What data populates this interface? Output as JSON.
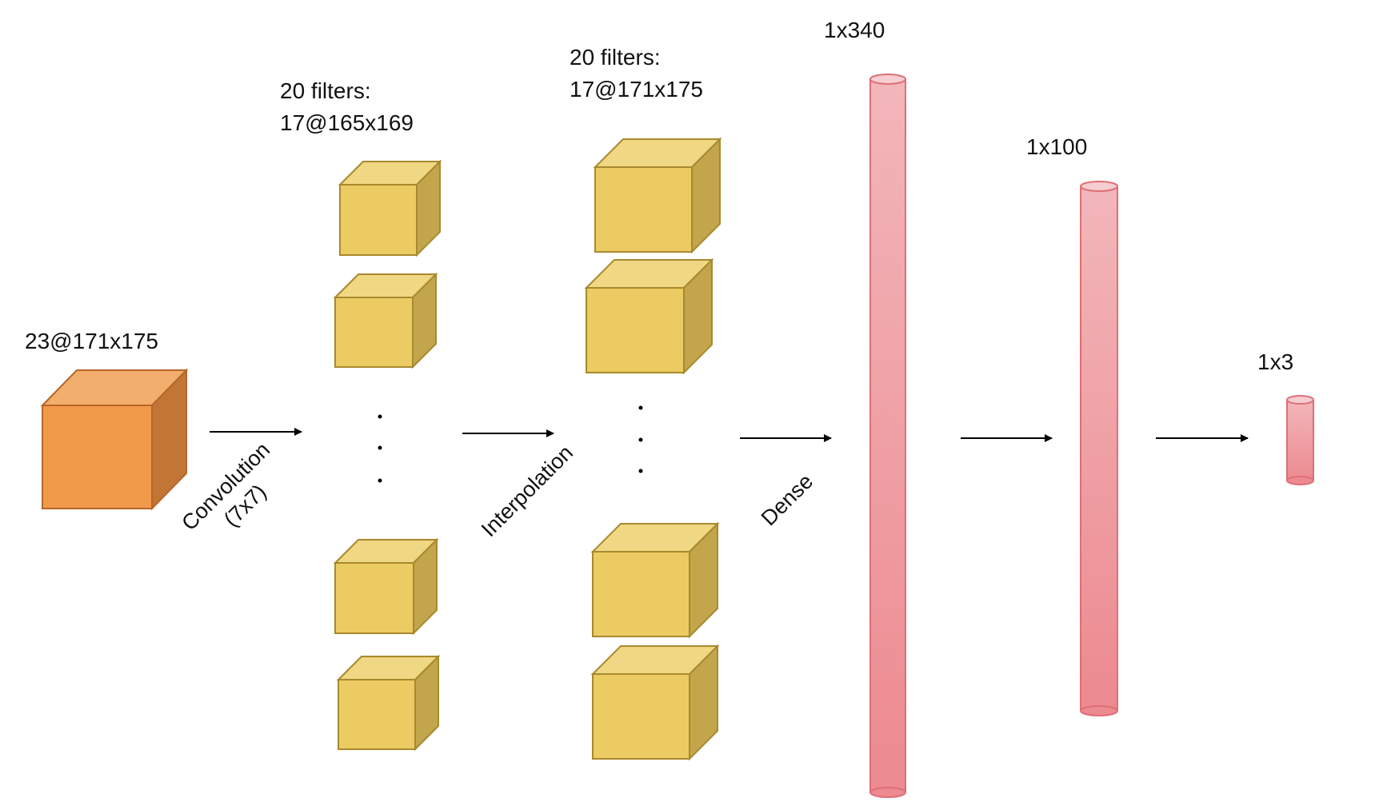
{
  "labels": {
    "input": "23@171x175",
    "conv_out": "20 filters:\n17@165x169",
    "interp_out": "20 filters:\n17@171x175",
    "dense1": "1x340",
    "dense2": "1x100",
    "output": "1x3"
  },
  "operations": {
    "convolution": "Convolution\n(7x7)",
    "interpolation": "Interpolation",
    "dense": "Dense"
  },
  "colors": {
    "input_cube_front": "#f09a4a",
    "input_cube_top": "#f2ae6c",
    "input_cube_side": "#c27635",
    "input_cube_stroke": "#b8652a",
    "filter_cube_front": "#eccb62",
    "filter_cube_top": "#efd783",
    "filter_cube_side": "#c3a54c",
    "filter_cube_stroke": "#a8892e",
    "cylinder_top": "#f2b6ba",
    "cylinder_bottom": "#ec8a90",
    "cylinder_stroke": "#de6f76",
    "arrow": "#000000"
  }
}
